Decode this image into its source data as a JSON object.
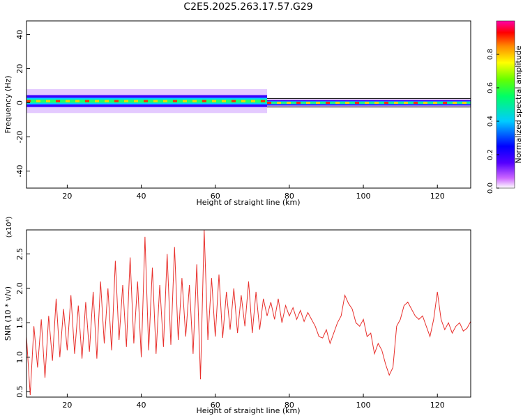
{
  "title": "C2E5.2025.263.17.57.G29",
  "chart_data": [
    {
      "type": "heatmap",
      "title": "C2E5.2025.263.17.57.G29",
      "xlabel": "Height of straight line (km)",
      "ylabel": "Frequency (Hz)",
      "xlim": [
        9,
        129
      ],
      "ylim": [
        -50,
        48
      ],
      "x_ticks": [
        20,
        40,
        60,
        80,
        100,
        120
      ],
      "y_ticks": [
        -40,
        -20,
        0,
        20,
        40
      ],
      "grid": false,
      "colorbar": {
        "label": "Normalized spectral amplitude",
        "range": [
          0.0,
          1.0
        ],
        "ticks": [
          "0.0",
          "0.2",
          "0.4",
          "0.6",
          "0.8"
        ],
        "colormap": [
          "#ff00ff",
          "#0000ff",
          "#00ffff",
          "#00ff00",
          "#ffff00",
          "#ff0000",
          "#ff00ff"
        ]
      },
      "band": [
        {
          "x_range": [
            9,
            74
          ],
          "center_hz": 1.0,
          "halfwidth_hz": 3.5,
          "outer_halfwidth_hz": 7.0,
          "peak_amplitude": 1.0
        },
        {
          "x_range": [
            74,
            129
          ],
          "center_hz": 0.0,
          "halfwidth_hz": 1.6,
          "outer_halfwidth_hz": 2.5,
          "peak_amplitude": 1.0
        }
      ]
    },
    {
      "type": "line",
      "xlabel": "Height of straight line (km)",
      "ylabel": "SNR (10 * v/v)",
      "y_multiplier": "(x10⁴)",
      "xlim": [
        9,
        129
      ],
      "ylim": [
        0.42,
        2.85
      ],
      "x_ticks": [
        20,
        40,
        60,
        80,
        100,
        120
      ],
      "y_ticks": [
        "0.5",
        "1.0",
        "1.5",
        "2.0",
        "2.5"
      ],
      "grid": false,
      "color": "#e8302c",
      "series": [
        {
          "x": [
            9,
            10,
            11,
            12,
            13,
            14,
            15,
            16,
            17,
            18,
            19,
            20,
            21,
            22,
            23,
            24,
            25,
            26,
            27,
            28,
            29,
            30,
            31,
            32,
            33,
            34,
            35,
            36,
            37,
            38,
            39,
            40,
            41,
            42,
            43,
            44,
            45,
            46,
            47,
            48,
            49,
            50,
            51,
            52,
            53,
            54,
            55,
            56,
            57,
            58,
            59,
            60,
            61,
            62,
            63,
            64,
            65,
            66,
            67,
            68,
            69,
            70,
            71,
            72,
            73,
            74,
            75,
            76,
            77,
            78,
            79,
            80,
            81,
            82,
            83,
            84,
            85,
            86,
            87,
            88,
            89,
            90,
            91,
            92,
            93,
            94,
            95,
            96,
            97,
            98,
            99,
            100,
            101,
            102,
            103,
            104,
            105,
            106,
            107,
            108,
            109,
            110,
            111,
            112,
            113,
            114,
            115,
            116,
            117,
            118,
            119,
            120,
            121,
            122,
            123,
            124,
            125,
            126,
            127,
            128,
            129
          ],
          "y": [
            1.3,
            0.45,
            1.45,
            0.85,
            1.55,
            0.7,
            1.6,
            0.95,
            1.85,
            1.0,
            1.7,
            1.1,
            1.9,
            1.05,
            1.75,
            0.98,
            1.8,
            1.08,
            1.95,
            0.98,
            2.1,
            1.2,
            2.0,
            1.1,
            2.4,
            1.25,
            2.05,
            1.15,
            2.45,
            1.2,
            2.1,
            1.0,
            2.75,
            1.1,
            2.3,
            1.05,
            2.05,
            1.15,
            2.5,
            1.18,
            2.6,
            1.25,
            2.15,
            1.3,
            2.05,
            1.05,
            2.35,
            0.68,
            2.85,
            1.25,
            2.15,
            1.3,
            2.2,
            1.28,
            1.95,
            1.4,
            2.0,
            1.35,
            1.9,
            1.45,
            2.1,
            1.35,
            1.95,
            1.4,
            1.85,
            1.6,
            1.8,
            1.55,
            1.85,
            1.5,
            1.75,
            1.6,
            1.72,
            1.55,
            1.68,
            1.52,
            1.65,
            1.55,
            1.45,
            1.3,
            1.28,
            1.4,
            1.2,
            1.35,
            1.5,
            1.6,
            1.9,
            1.78,
            1.7,
            1.5,
            1.45,
            1.55,
            1.3,
            1.35,
            1.05,
            1.2,
            1.1,
            0.9,
            0.74,
            0.85,
            1.45,
            1.55,
            1.75,
            1.8,
            1.7,
            1.6,
            1.55,
            1.6,
            1.45,
            1.3,
            1.55,
            1.95,
            1.55,
            1.4,
            1.5,
            1.35,
            1.45,
            1.5,
            1.38,
            1.42,
            1.52
          ]
        }
      ]
    }
  ]
}
